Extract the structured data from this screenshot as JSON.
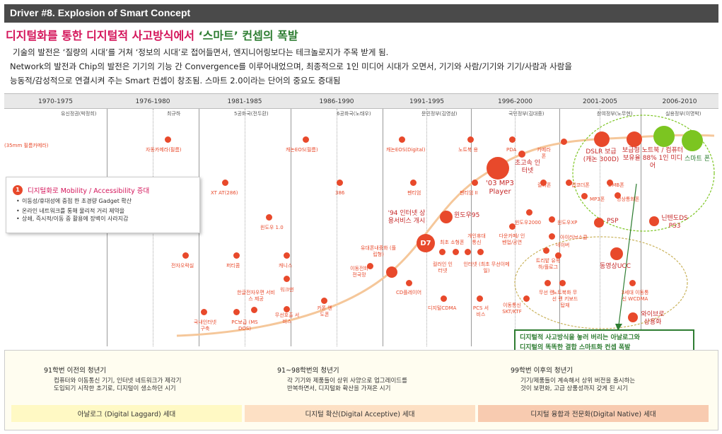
{
  "header": {
    "title": "Driver #8. Explosion of Smart Concept"
  },
  "headline": {
    "part1": "디지털화를 통한 디지털적 사고방식에서",
    "part2": "‘스마트’ 컨셉의 폭발"
  },
  "intro": {
    "line1": "기술의 발전은 ‘질량의 시대’를 거쳐 ‘정보의 시대’로 접어들면서, 엔지니어링보다는 테크놀로지가 주목 받게 됨.",
    "line2": "Network의 발전과 Chip의 발전은 기기의 기능 간 Convergence를 이루어내었으며, 최종적으로 1인 미디어 시대가 오면서, 기기와 사람/기기와 기기/사람과 사람을",
    "line3": "능동적/감성적으로 연결시켜 주는 Smart 컨셉이 창조됨. 스마트 2.0이라는 단어의 중요도 증대됨"
  },
  "periods": [
    "1970-1975",
    "1976-1980",
    "1981-1985",
    "1986-1990",
    "1991-1995",
    "1996-2000",
    "2001-2005",
    "2006-2010"
  ],
  "governments": [
    "유신정권(박정희)",
    "최규하",
    "5공화국(전두환)",
    "6공화국(노태우)",
    "문민정부(김영삼)",
    "국민정부(김대중)",
    "참여정부(노무현)",
    "실용정부(이명박)"
  ],
  "events": [
    "(35mm 필름카메라)",
    "자동카메라(필름)",
    "XT AT(286)",
    "윈도우 1.0",
    "전자오락실",
    "퍼티콤",
    "국내인터넷 구축",
    "PC보급 (MS DOS)",
    "한글전자우편 서비스 제공",
    "워크맨",
    "캐니스",
    "무선호출 서비스",
    "캐논EOS(필름)",
    "386",
    "카폰 엔도폰",
    "이동전화 전국망",
    "유대폰내중화 (플립형)",
    "'94 인터넷 상용서비스 개시",
    "D7",
    "캐논EOS(Digital)",
    "펜티엄",
    "펜티엄 II",
    "CD플레이어",
    "윈도우95",
    "디지털CDMA",
    "최초 소형폰",
    "개인휴대 통신",
    "컬러인 인터넷",
    "인터넷 (최초 무선이메일)",
    "PCS 서비스",
    "노트북 용",
    "PDA",
    "'03 MP3 Player",
    "초고속 인터넷",
    "카메라 폰",
    "컬러폰",
    "윈도우2000",
    "다운카페/ 인벤업/공연",
    "트리밭 유목하/플로그",
    "이동통신 SKT/KTF",
    "무선 랜",
    "노트북화 무선 랜 키보드탑재",
    "PC업그레이드",
    "DSLR 보급 (캐논 300D)",
    "맵코더폰",
    "MP3폰",
    "DMB폰",
    "영상통화폰",
    "윈도우XP",
    "PSP",
    "아이러브스쿨",
    "네이버",
    "동영상UCC",
    "3세대 이동통신 WCDMA",
    "와이브로 상용화",
    "보급형 노트북 / 컴퓨터 보유율 88% 1인 미디어",
    "닌텐도DS PS3",
    "스마트 폰"
  ],
  "box_left": {
    "num": "1",
    "title": "디지털화로 Mobility / Accessibility 증대",
    "bullets": [
      "이동성/휴대성에 중점 한 초경량 Gadget 확산",
      "온라인 네트워크를 통해 물리적 거리 제약을",
      "상쇄, 즉시적/이동 중 활용에 장벽이 사라지감"
    ]
  },
  "callout": {
    "line1": "디지털적 사고방식을 놓러 버리는 아날로그와",
    "line2": "디지털의 똑똑한 결합 스마트화 컨셉 폭발"
  },
  "generations": [
    {
      "title": "91학번 이전의 청년기",
      "desc1": "컴퓨터와 이동통신 기기, 인터넷 네트워크가 제각기",
      "desc2": "도입되기 시작한 초기로, 디지털이 생소하던 시기",
      "band": "아날로그 (Digital Laggard) 세대",
      "color": "#fff9c4"
    },
    {
      "title": "91~98학번의 청년기",
      "desc1": "각 기기와 제품들이 상위 사양으로 업그레이드를",
      "desc2": "반복하면서, 디지털화 확산을 가져온 시기",
      "band": "디지털 확산(Digital Acceptive) 세대",
      "color": "#fde0c4"
    },
    {
      "title": "99학번 이후의 청년기",
      "desc1": "기기/제품들이 계속해서 상위 버전을 출시하는",
      "desc2": "것이 보편화, 고급 상품성까지 갖게 된 시기",
      "band": "디지털 융합과 전문화(Digital Native) 세대",
      "color": "#f8cbb0"
    }
  ],
  "colors": {
    "accent": "#d4145a",
    "dot": "#e8492b",
    "green": "#7cc521",
    "curve": "#f5c79a"
  }
}
